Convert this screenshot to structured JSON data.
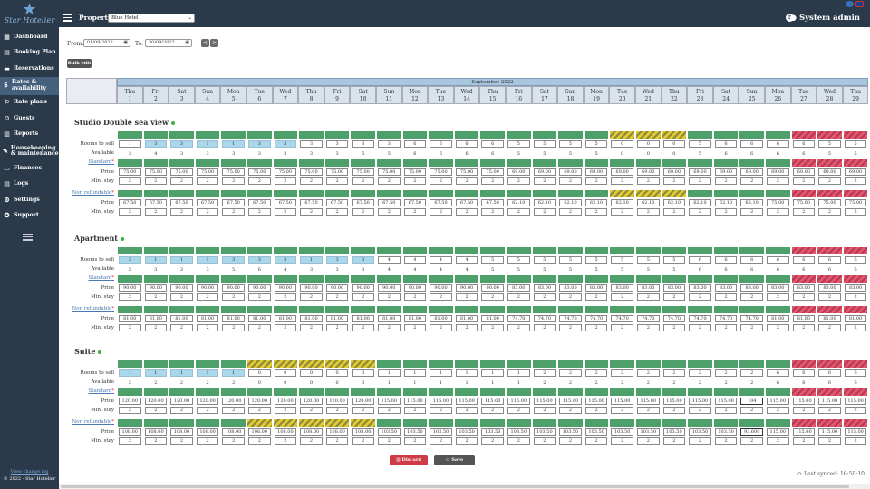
{
  "sidebar": {
    "logo_text": "Star Hotelier",
    "items": [
      {
        "label": "Dashboard",
        "icon": "dashboard-icon",
        "glyph": "▦"
      },
      {
        "label": "Booking Plan",
        "icon": "booking-plan-icon",
        "glyph": "▤"
      },
      {
        "label": "Reservations",
        "icon": "reservations-icon",
        "glyph": "▬"
      },
      {
        "label": "Rates & availability",
        "icon": "rates-icon",
        "glyph": "$",
        "active": true
      },
      {
        "label": "Rate plans",
        "icon": "rate-plans-icon",
        "glyph": "⚐"
      },
      {
        "label": "Guests",
        "icon": "guests-icon",
        "glyph": "☺"
      },
      {
        "label": "Reports",
        "icon": "reports-icon",
        "glyph": "▥"
      },
      {
        "label": "Housekeeping & maintenance",
        "icon": "housekeeping-icon",
        "glyph": "✎"
      },
      {
        "label": "Finances",
        "icon": "finances-icon",
        "glyph": "▭"
      },
      {
        "label": "Logs",
        "icon": "logs-icon",
        "glyph": "▤"
      },
      {
        "label": "Settings",
        "icon": "settings-icon",
        "glyph": "⚙"
      },
      {
        "label": "Support",
        "icon": "support-icon",
        "glyph": "✪"
      }
    ],
    "footer_link": "View change log",
    "copyright": "© 2022 - Star Hotelier"
  },
  "topbar": {
    "property_label": "Property:",
    "property_value": "Blue Hotel",
    "user": "System admin"
  },
  "filters": {
    "from_label": "From:",
    "from_value": "01/09/2022",
    "to_label": "To:",
    "to_value": "30/09/2022",
    "prev": "<",
    "next": ">",
    "bulk_edit": "Bulk edit"
  },
  "calendar": {
    "month": "September 2022",
    "days": [
      "Thu",
      "Fri",
      "Sat",
      "Sun",
      "Mon",
      "Tue",
      "Wed",
      "Thu",
      "Fri",
      "Sat",
      "Sun",
      "Mon",
      "Tue",
      "Wed",
      "Thu",
      "Fri",
      "Sat",
      "Sun",
      "Mon",
      "Tue",
      "Wed",
      "Thu",
      "Fri",
      "Sat",
      "Sun",
      "Mon",
      "Tue",
      "Wed",
      "Thu"
    ],
    "dates": [
      "1",
      "2",
      "3",
      "4",
      "5",
      "6",
      "7",
      "8",
      "9",
      "10",
      "11",
      "12",
      "13",
      "14",
      "15",
      "16",
      "17",
      "18",
      "19",
      "20",
      "21",
      "22",
      "23",
      "24",
      "25",
      "26",
      "27",
      "28",
      "29"
    ]
  },
  "labels": {
    "rooms_to_sell": "Rooms to sell",
    "available": "Available",
    "price": "Price",
    "min_stay": "Min. stay"
  },
  "rooms": [
    {
      "name": "Studio Double sea view",
      "status": "GGGGGGGGGGGGGGGGGGGYYYGGGGRRRR",
      "rooms_to_sell": [
        "1",
        "3",
        "3",
        "1",
        "1",
        "3",
        "3",
        "3",
        "3",
        "3",
        "3",
        "6",
        "6",
        "6",
        "6",
        "5",
        "5",
        "5",
        "5",
        "0",
        "0",
        "0",
        "5",
        "6",
        "6",
        "6",
        "6",
        "5",
        "5"
      ],
      "rts_blue": [
        2,
        3,
        4,
        5,
        6,
        7
      ],
      "available": [
        "3",
        "4",
        "3",
        "3",
        "3",
        "3",
        "3",
        "3",
        "3",
        "5",
        "5",
        "6",
        "6",
        "6",
        "6",
        "5",
        "5",
        "5",
        "5",
        "0",
        "0",
        "0",
        "5",
        "6",
        "6",
        "6",
        "6",
        "5",
        "5"
      ],
      "rate_plans": [
        {
          "name": "Standard",
          "status": "GGGGGGGGGGGGGGGGGGGGGGGGGGRRRR",
          "price": [
            "75.00",
            "75.00",
            "75.00",
            "75.00",
            "75.00",
            "75.00",
            "75.00",
            "75.00",
            "75.00",
            "75.00",
            "75.00",
            "75.00",
            "75.00",
            "75.00",
            "75.00",
            "69.00",
            "69.00",
            "69.00",
            "69.00",
            "69.00",
            "69.00",
            "69.00",
            "69.00",
            "69.00",
            "69.00",
            "69.00",
            "69.00",
            "69.00",
            "69.00"
          ],
          "min_stay": [
            "2",
            "2",
            "2",
            "2",
            "2",
            "2",
            "2",
            "2",
            "2",
            "2",
            "2",
            "2",
            "2",
            "2",
            "2",
            "2",
            "2",
            "2",
            "2",
            "2",
            "2",
            "2",
            "2",
            "2",
            "2",
            "2",
            "2",
            "2",
            "2"
          ]
        },
        {
          "name": "Non refundable",
          "status": "GGGGGGGGGGGGGGGGGGGYYYGGGGRRRR",
          "price": [
            "67.50",
            "67.50",
            "67.50",
            "67.50",
            "67.50",
            "67.50",
            "67.50",
            "67.50",
            "67.50",
            "67.50",
            "67.50",
            "67.50",
            "67.50",
            "67.50",
            "67.50",
            "62.10",
            "62.10",
            "62.10",
            "62.10",
            "62.10",
            "62.10",
            "62.10",
            "62.10",
            "62.10",
            "62.10",
            "75.00",
            "75.00",
            "75.00",
            "75.00"
          ],
          "min_stay": [
            "2",
            "2",
            "2",
            "2",
            "2",
            "2",
            "2",
            "2",
            "2",
            "2",
            "2",
            "2",
            "2",
            "2",
            "2",
            "2",
            "2",
            "2",
            "2",
            "2",
            "2",
            "2",
            "2",
            "2",
            "2",
            "2",
            "2",
            "2",
            "2"
          ]
        }
      ]
    },
    {
      "name": "Apartment",
      "status": "GGGGGGGGGGGGGGGGGGGGGGGGGGRRRR",
      "rooms_to_sell": [
        "3",
        "1",
        "1",
        "1",
        "3",
        "3",
        "3",
        "1",
        "3",
        "3",
        "4",
        "4",
        "4",
        "4",
        "5",
        "5",
        "5",
        "5",
        "5",
        "5",
        "5",
        "5",
        "6",
        "6",
        "6",
        "6",
        "6",
        "6",
        "6"
      ],
      "rts_blue": [
        1,
        2,
        3,
        4,
        5,
        6,
        7,
        8,
        9,
        10
      ],
      "available": [
        "3",
        "3",
        "3",
        "3",
        "5",
        "6",
        "4",
        "3",
        "3",
        "3",
        "4",
        "4",
        "4",
        "4",
        "5",
        "5",
        "5",
        "5",
        "5",
        "5",
        "5",
        "5",
        "6",
        "6",
        "6",
        "6",
        "6",
        "6",
        "6"
      ],
      "rate_plans": [
        {
          "name": "Standard",
          "status": "GGGGGGGGGGGGGGGGGGGGGGGGGGRRRR",
          "price": [
            "90.00",
            "90.00",
            "90.00",
            "90.00",
            "90.00",
            "90.00",
            "90.00",
            "90.00",
            "90.00",
            "90.00",
            "90.00",
            "90.00",
            "90.00",
            "90.00",
            "90.00",
            "83.00",
            "83.00",
            "83.00",
            "83.00",
            "83.00",
            "83.00",
            "83.00",
            "83.00",
            "83.00",
            "83.00",
            "83.00",
            "83.00",
            "83.00",
            "83.00"
          ],
          "min_stay": [
            "2",
            "2",
            "2",
            "2",
            "2",
            "2",
            "2",
            "2",
            "2",
            "2",
            "2",
            "2",
            "2",
            "2",
            "2",
            "2",
            "2",
            "2",
            "2",
            "2",
            "2",
            "2",
            "2",
            "2",
            "2",
            "2",
            "2",
            "2",
            "2"
          ]
        },
        {
          "name": "Non refundable",
          "status": "GGGGGGGGGGGGGGGGGGGGGGGGGGRRRR",
          "price": [
            "81.00",
            "81.00",
            "81.00",
            "81.00",
            "81.00",
            "81.00",
            "81.00",
            "81.00",
            "81.00",
            "81.00",
            "81.00",
            "81.00",
            "81.00",
            "81.00",
            "81.00",
            "74.70",
            "74.70",
            "74.70",
            "74.70",
            "74.70",
            "74.70",
            "74.70",
            "74.70",
            "74.70",
            "74.70",
            "81.00",
            "81.00",
            "81.00",
            "81.00"
          ],
          "min_stay": [
            "2",
            "2",
            "2",
            "2",
            "2",
            "2",
            "2",
            "2",
            "2",
            "2",
            "2",
            "2",
            "2",
            "2",
            "2",
            "2",
            "2",
            "2",
            "2",
            "2",
            "2",
            "2",
            "2",
            "2",
            "2",
            "2",
            "2",
            "2",
            "2"
          ]
        }
      ]
    },
    {
      "name": "Suite",
      "status": "GGGGGYYYYYGGGGGGGGGGGGGGGGRRRR",
      "rooms_to_sell": [
        "1",
        "1",
        "1",
        "1",
        "1",
        "0",
        "0",
        "0",
        "0",
        "0",
        "1",
        "1",
        "1",
        "1",
        "1",
        "1",
        "2",
        "2",
        "2",
        "2",
        "2",
        "2",
        "2",
        "2",
        "2",
        "6",
        "6",
        "6",
        "6"
      ],
      "rts_blue": [
        1,
        2,
        3,
        4,
        5
      ],
      "available": [
        "2",
        "2",
        "2",
        "2",
        "2",
        "0",
        "0",
        "0",
        "0",
        "0",
        "1",
        "1",
        "1",
        "1",
        "1",
        "1",
        "2",
        "2",
        "2",
        "2",
        "2",
        "2",
        "2",
        "2",
        "2",
        "6",
        "6",
        "6",
        "6"
      ],
      "rate_plans": [
        {
          "name": "Standard",
          "status": "GGGGGGGGGGGGGGGGGGGGGGGGGGRRRR",
          "price": [
            "120.00",
            "120.00",
            "120.00",
            "120.00",
            "120.00",
            "120.00",
            "120.00",
            "120.00",
            "120.00",
            "120.00",
            "115.00",
            "115.00",
            "115.00",
            "115.00",
            "115.00",
            "115.00",
            "115.00",
            "115.00",
            "115.00",
            "115.00",
            "115.00",
            "115.00",
            "115.00",
            "115.00",
            "104",
            "115.00",
            "115.00",
            "115.00",
            "115.00"
          ],
          "min_stay": [
            "2",
            "2",
            "2",
            "2",
            "2",
            "2",
            "2",
            "2",
            "2",
            "2",
            "2",
            "2",
            "2",
            "2",
            "2",
            "2",
            "2",
            "2",
            "2",
            "2",
            "2",
            "2",
            "2",
            "2",
            "2",
            "2",
            "2",
            "2",
            "2"
          ]
        },
        {
          "name": "Non refundable",
          "status": "GGGGGYYYYYGGGGGGGGGGGGGGGGRRRR",
          "price": [
            "108.00",
            "108.00",
            "108.00",
            "108.00",
            "108.00",
            "108.00",
            "108.00",
            "108.00",
            "108.00",
            "108.00",
            "103.50",
            "103.50",
            "103.50",
            "103.50",
            "103.50",
            "103.50",
            "103.50",
            "103.50",
            "103.50",
            "103.50",
            "103.50",
            "103.50",
            "103.50",
            "103.50",
            "93.600",
            "115.00",
            "115.00",
            "115.00",
            "115.00"
          ],
          "min_stay": [
            "2",
            "2",
            "2",
            "2",
            "2",
            "2",
            "2",
            "2",
            "2",
            "2",
            "2",
            "2",
            "2",
            "2",
            "2",
            "2",
            "2",
            "2",
            "2",
            "2",
            "2",
            "2",
            "2",
            "2",
            "2",
            "2",
            "2",
            "2",
            "2"
          ]
        }
      ]
    }
  ],
  "footer": {
    "discard": "Discard",
    "save": "Save",
    "synced": "Last synced: 16:59:10"
  }
}
